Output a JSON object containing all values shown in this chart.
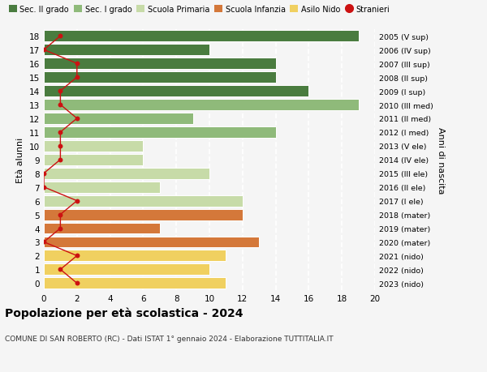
{
  "ages": [
    18,
    17,
    16,
    15,
    14,
    13,
    12,
    11,
    10,
    9,
    8,
    7,
    6,
    5,
    4,
    3,
    2,
    1,
    0
  ],
  "bar_values": [
    19,
    10,
    14,
    14,
    16,
    19,
    9,
    14,
    6,
    6,
    10,
    7,
    12,
    12,
    7,
    13,
    11,
    10,
    11
  ],
  "bar_colors": [
    "#4a7c3f",
    "#4a7c3f",
    "#4a7c3f",
    "#4a7c3f",
    "#4a7c3f",
    "#8fba7a",
    "#8fba7a",
    "#8fba7a",
    "#c7dba8",
    "#c7dba8",
    "#c7dba8",
    "#c7dba8",
    "#c7dba8",
    "#d4783a",
    "#d4783a",
    "#d4783a",
    "#f0d060",
    "#f0d060",
    "#f0d060"
  ],
  "stranieri": [
    1,
    0,
    2,
    2,
    1,
    1,
    2,
    1,
    1,
    1,
    0,
    0,
    2,
    1,
    1,
    0,
    2,
    1,
    2
  ],
  "right_labels": [
    "2005 (V sup)",
    "2006 (IV sup)",
    "2007 (III sup)",
    "2008 (II sup)",
    "2009 (I sup)",
    "2010 (III med)",
    "2011 (II med)",
    "2012 (I med)",
    "2013 (V ele)",
    "2014 (IV ele)",
    "2015 (III ele)",
    "2016 (II ele)",
    "2017 (I ele)",
    "2018 (mater)",
    "2019 (mater)",
    "2020 (mater)",
    "2021 (nido)",
    "2022 (nido)",
    "2023 (nido)"
  ],
  "legend_labels": [
    "Sec. II grado",
    "Sec. I grado",
    "Scuola Primaria",
    "Scuola Infanzia",
    "Asilo Nido",
    "Stranieri"
  ],
  "legend_colors": [
    "#4a7c3f",
    "#8fba7a",
    "#c7dba8",
    "#d4783a",
    "#f0d060",
    "#cc1111"
  ],
  "ylabel_left": "Età alunni",
  "ylabel_right": "Anni di nascita",
  "title": "Popolazione per età scolastica - 2024",
  "subtitle": "COMUNE DI SAN ROBERTO (RC) - Dati ISTAT 1° gennaio 2024 - Elaborazione TUTTITALIA.IT",
  "xlim": [
    0,
    20
  ],
  "background_color": "#f5f5f5",
  "line_color": "#cc1111"
}
